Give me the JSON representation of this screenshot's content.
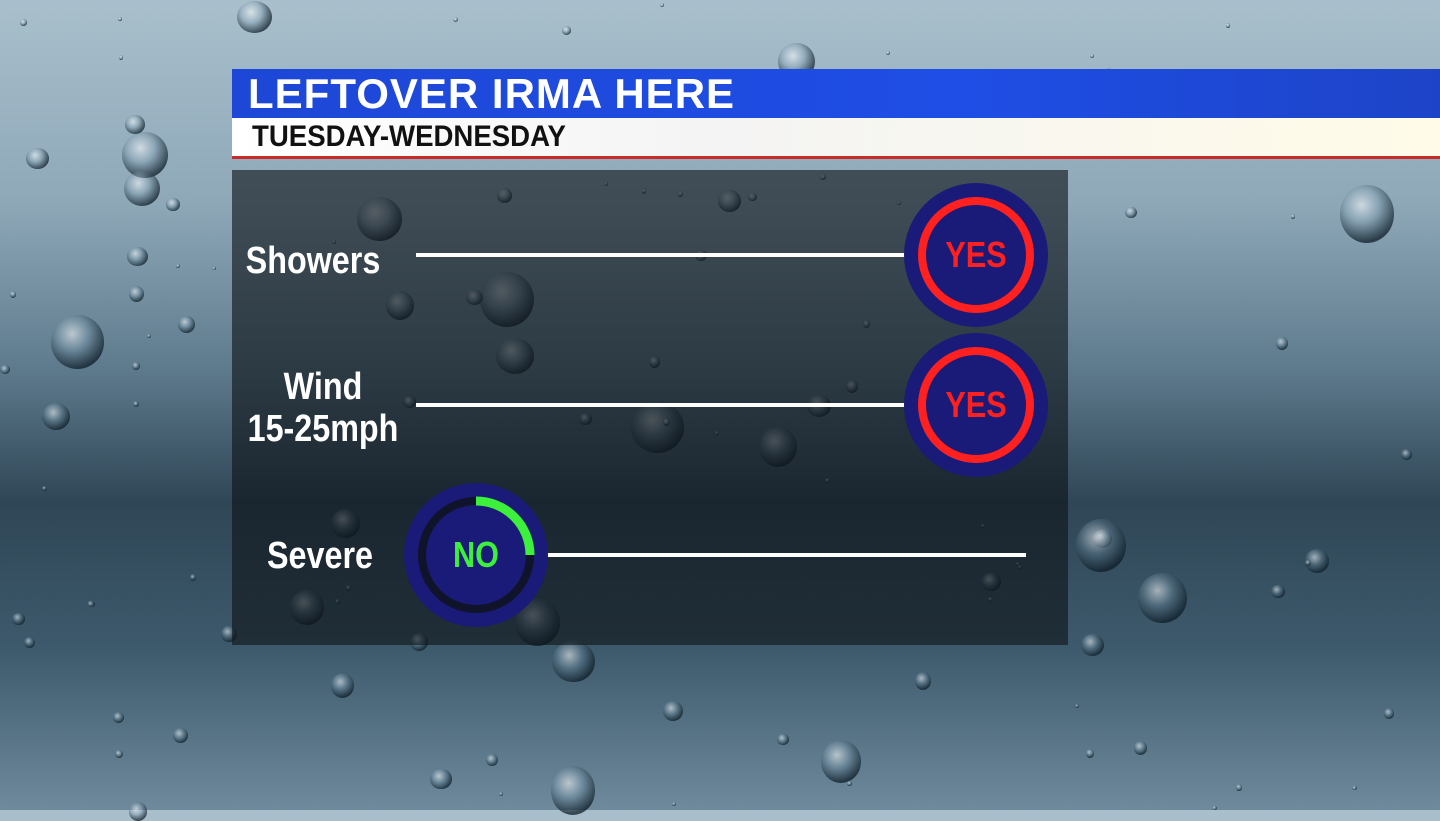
{
  "header": {
    "title": "LEFTOVER IRMA HERE",
    "subtitle": "TUESDAY-WEDNESDAY"
  },
  "rows": [
    {
      "label": "Showers",
      "answer": "YES",
      "color": "#ff2020"
    },
    {
      "label": "Wind\n15-25mph",
      "label_line1": "Wind",
      "label_line2": "15-25mph",
      "answer": "YES",
      "color": "#ff2020"
    },
    {
      "label": "Severe",
      "answer": "NO",
      "color": "#3cf03c",
      "arc_fraction": 0.25
    }
  ],
  "colors": {
    "title_bar": "#1f4ee6",
    "badge": "#1a1a78",
    "yes": "#ff2020",
    "no": "#3cf03c"
  }
}
